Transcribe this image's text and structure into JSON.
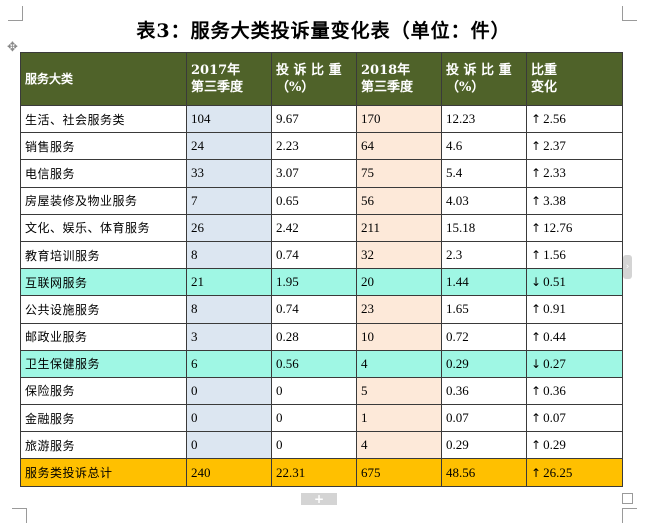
{
  "title": "表3：服务大类投诉量变化表（单位：件）",
  "icons": {
    "move_handle": "move-cross-icon",
    "side_tab": "expand-right-icon",
    "add_row": "plus-icon"
  },
  "colors": {
    "header": "#4f6229",
    "col_2017": "#dce6f1",
    "col_2018": "#fde9d9",
    "highlight_row": "#9ff7e4",
    "total_row": "#ffc000"
  },
  "header": {
    "category": "服务大类",
    "q2017_line1": "2017年",
    "q2017_line2": "第三季度",
    "share2017_line1": "投 诉 比 重",
    "share2017_line2": "（%）",
    "q2018_line1": "2018年",
    "q2018_line2": "第三季度",
    "share2018_line1": "投 诉 比 重",
    "share2018_line2": "（%）",
    "change_line1": "比重",
    "change_line2": "变化"
  },
  "rows": [
    {
      "name": "生活、社会服务类",
      "v2017": "104",
      "p2017": "9.67",
      "v2018": "170",
      "p2018": "12.23",
      "dir": "↑",
      "change": "2.56",
      "highlight": false
    },
    {
      "name": "销售服务",
      "v2017": "24",
      "p2017": "2.23",
      "v2018": "64",
      "p2018": "4.6",
      "dir": "↑",
      "change": "2.37",
      "highlight": false
    },
    {
      "name": "电信服务",
      "v2017": "33",
      "p2017": "3.07",
      "v2018": "75",
      "p2018": "5.4",
      "dir": "↑",
      "change": "2.33",
      "highlight": false
    },
    {
      "name": "房屋装修及物业服务",
      "v2017": "7",
      "p2017": "0.65",
      "v2018": "56",
      "p2018": "4.03",
      "dir": "↑",
      "change": "3.38",
      "highlight": false
    },
    {
      "name": "文化、娱乐、体育服务",
      "v2017": "26",
      "p2017": "2.42",
      "v2018": "211",
      "p2018": "15.18",
      "dir": "↑",
      "change": "12.76",
      "highlight": false
    },
    {
      "name": "教育培训服务",
      "v2017": "8",
      "p2017": "0.74",
      "v2018": "32",
      "p2018": "2.3",
      "dir": "↑",
      "change": "1.56",
      "highlight": false
    },
    {
      "name": "互联网服务",
      "v2017": "21",
      "p2017": "1.95",
      "v2018": "20",
      "p2018": "1.44",
      "dir": "↓",
      "change": "0.51",
      "highlight": true
    },
    {
      "name": "公共设施服务",
      "v2017": "8",
      "p2017": "0.74",
      "v2018": "23",
      "p2018": "1.65",
      "dir": "↑",
      "change": "0.91",
      "highlight": false
    },
    {
      "name": "邮政业服务",
      "v2017": "3",
      "p2017": "0.28",
      "v2018": "10",
      "p2018": "0.72",
      "dir": "↑",
      "change": "0.44",
      "highlight": false
    },
    {
      "name": "卫生保健服务",
      "v2017": "6",
      "p2017": "0.56",
      "v2018": "4",
      "p2018": "0.29",
      "dir": "↓",
      "change": "0.27",
      "highlight": true
    },
    {
      "name": "保险服务",
      "v2017": "0",
      "p2017": "0",
      "v2018": "5",
      "p2018": "0.36",
      "dir": "↑",
      "change": "0.36",
      "highlight": false
    },
    {
      "name": "金融服务",
      "v2017": "0",
      "p2017": "0",
      "v2018": "1",
      "p2018": "0.07",
      "dir": "↑",
      "change": "0.07",
      "highlight": false
    },
    {
      "name": "旅游服务",
      "v2017": "0",
      "p2017": "0",
      "v2018": "4",
      "p2018": "0.29",
      "dir": "↑",
      "change": "0.29",
      "highlight": false
    }
  ],
  "total": {
    "name": "服务类投诉总计",
    "v2017": "240",
    "p2017": "22.31",
    "v2018": "675",
    "p2018": "48.56",
    "dir": "↑",
    "change": "26.25"
  }
}
